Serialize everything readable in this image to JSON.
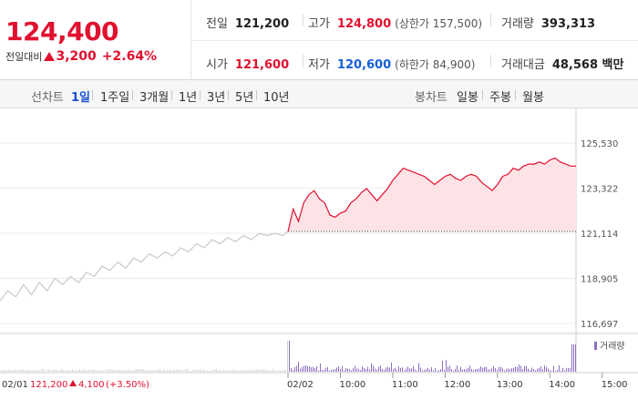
{
  "header": {
    "price": "124,400",
    "change_label": "전일대비",
    "change_amount": "3,200",
    "change_percent": "+2.64%",
    "stats": {
      "prev_close": {
        "label": "전일",
        "value": "121,200"
      },
      "high": {
        "label": "고가",
        "value": "124,800",
        "sub": "(상한가 157,500)"
      },
      "volume": {
        "label": "거래량",
        "value": "393,313"
      },
      "open": {
        "label": "시가",
        "value": "121,600"
      },
      "low": {
        "label": "저가",
        "value": "120,600",
        "sub": "(하한가 84,900)"
      },
      "trade_value": {
        "label": "거래대금",
        "value": "48,568 백만"
      }
    }
  },
  "toolbar": {
    "line_label": "선차트",
    "line_periods": [
      "1일",
      "1주일",
      "3개월",
      "1년",
      "3년",
      "5년",
      "10년"
    ],
    "candle_label": "봉차트",
    "candle_periods": [
      "일봉",
      "주봉",
      "월봉"
    ]
  },
  "colors": {
    "up": "#e0102e",
    "down": "#1560d8",
    "prev_day_line": "#c9c9c9",
    "area_fill": "#fde3e6",
    "volume": "#8c6fc4"
  },
  "chart_data": [
    {
      "type": "line",
      "yticks": [
        "125,530",
        "123,322",
        "121,114",
        "118,905",
        "116,697"
      ],
      "ylim": [
        116697,
        125530
      ],
      "baseline": 121200,
      "grid": true,
      "series": [
        {
          "points": [
            [
              0,
              117800
            ],
            [
              3,
              118300
            ],
            [
              6,
              118000
            ],
            [
              9,
              118600
            ],
            [
              12,
              118100
            ],
            [
              15,
              118700
            ],
            [
              18,
              118300
            ],
            [
              21,
              118900
            ],
            [
              24,
              118600
            ],
            [
              27,
              119000
            ],
            [
              30,
              118700
            ],
            [
              33,
              119200
            ],
            [
              36,
              119000
            ],
            [
              39,
              119500
            ],
            [
              42,
              119300
            ],
            [
              45,
              119700
            ],
            [
              48,
              119400
            ],
            [
              51,
              119900
            ],
            [
              54,
              119700
            ],
            [
              57,
              120100
            ],
            [
              60,
              119900
            ],
            [
              63,
              120200
            ],
            [
              66,
              120000
            ],
            [
              69,
              120400
            ],
            [
              72,
              120200
            ],
            [
              75,
              120600
            ],
            [
              78,
              120400
            ],
            [
              81,
              120800
            ],
            [
              84,
              120600
            ],
            [
              87,
              120900
            ],
            [
              90,
              120700
            ],
            [
              93,
              121000
            ],
            [
              96,
              120800
            ],
            [
              99,
              121100
            ],
            [
              102,
              121000
            ],
            [
              105,
              121100
            ],
            [
              108,
              121000
            ],
            [
              110,
              121200
            ]
          ]
        },
        {
          "points": [
            [
              110,
              121200
            ],
            [
              112,
              122300
            ],
            [
              114,
              121700
            ],
            [
              116,
              122600
            ],
            [
              118,
              123000
            ],
            [
              120,
              123200
            ],
            [
              122,
              122800
            ],
            [
              124,
              122600
            ],
            [
              126,
              122000
            ],
            [
              128,
              121900
            ],
            [
              130,
              122100
            ],
            [
              132,
              122200
            ],
            [
              134,
              122600
            ],
            [
              136,
              122800
            ],
            [
              138,
              123100
            ],
            [
              140,
              123300
            ],
            [
              142,
              123000
            ],
            [
              144,
              122700
            ],
            [
              146,
              123000
            ],
            [
              148,
              123300
            ],
            [
              150,
              123700
            ],
            [
              152,
              124000
            ],
            [
              154,
              124300
            ],
            [
              156,
              124200
            ],
            [
              158,
              124100
            ],
            [
              160,
              124000
            ],
            [
              162,
              123900
            ],
            [
              164,
              123700
            ],
            [
              166,
              123500
            ],
            [
              168,
              123700
            ],
            [
              170,
              123900
            ],
            [
              172,
              124000
            ],
            [
              174,
              123800
            ],
            [
              176,
              123700
            ],
            [
              178,
              123900
            ],
            [
              180,
              124000
            ],
            [
              182,
              123900
            ],
            [
              184,
              123600
            ],
            [
              186,
              123400
            ],
            [
              188,
              123200
            ],
            [
              190,
              123500
            ],
            [
              192,
              123900
            ],
            [
              194,
              124000
            ],
            [
              196,
              124300
            ],
            [
              198,
              124200
            ],
            [
              200,
              124400
            ],
            [
              202,
              124500
            ],
            [
              204,
              124500
            ],
            [
              206,
              124600
            ],
            [
              208,
              124500
            ],
            [
              210,
              124700
            ],
            [
              212,
              124800
            ],
            [
              214,
              124600
            ],
            [
              216,
              124500
            ],
            [
              218,
              124400
            ],
            [
              220,
              124400
            ]
          ]
        }
      ]
    },
    {
      "type": "bar",
      "legend": "거래량",
      "xticks": [
        "02/01",
        "02/02",
        "10:00",
        "11:00",
        "12:00",
        "13:00",
        "14:00",
        "15:00"
      ]
    }
  ],
  "footer": {
    "prev_date": "02/01",
    "prev_close": "121,200",
    "prev_change": "4,100",
    "prev_percent": "(+3.50%)"
  }
}
